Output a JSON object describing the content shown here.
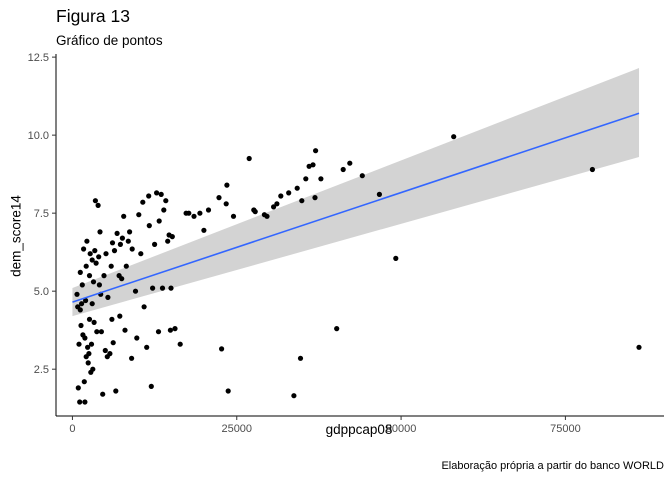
{
  "header": {
    "title": "Figura 13",
    "subtitle": "Gráfico de pontos"
  },
  "caption": "Elaboração própria a partir do banco WORLD",
  "colors": {
    "points": "#000000",
    "fit_line": "#3366ff",
    "ci_band": "#d3d3d3",
    "axis": "#000000"
  },
  "chart_data": {
    "type": "scatter",
    "title": "Figura 13",
    "subtitle": "Gráfico de pontos",
    "xlabel": "gdppcap08",
    "ylabel": "dem_score14",
    "xlim": [
      -2500,
      90000
    ],
    "ylim": [
      1.0,
      12.6
    ],
    "x_ticks": [
      0,
      25000,
      50000,
      75000
    ],
    "x_tick_labels": [
      "0",
      "25000",
      "50000",
      "75000"
    ],
    "y_ticks": [
      2.5,
      5.0,
      7.5,
      10.0,
      12.5
    ],
    "y_tick_labels": [
      "2.5",
      "5.0",
      "7.5",
      "10.0",
      "12.5"
    ],
    "grid": false,
    "smooth": {
      "method": "lm",
      "x": [
        0,
        86200
      ],
      "y": [
        4.65,
        10.7
      ],
      "ci_lower": [
        4.2,
        9.3
      ],
      "ci_upper": [
        5.1,
        12.15
      ]
    },
    "points": [
      [
        700,
        4.9
      ],
      [
        800,
        4.5
      ],
      [
        900,
        1.9
      ],
      [
        1000,
        3.3
      ],
      [
        1100,
        1.45
      ],
      [
        1200,
        4.4
      ],
      [
        1200,
        5.6
      ],
      [
        1300,
        3.9
      ],
      [
        1400,
        4.6
      ],
      [
        1500,
        5.2
      ],
      [
        1600,
        3.6
      ],
      [
        1700,
        6.35
      ],
      [
        1800,
        2.1
      ],
      [
        1900,
        1.45
      ],
      [
        1900,
        3.5
      ],
      [
        2000,
        4.7
      ],
      [
        2100,
        2.9
      ],
      [
        2100,
        5.8
      ],
      [
        2200,
        6.6
      ],
      [
        2300,
        3.2
      ],
      [
        2400,
        2.7
      ],
      [
        2500,
        3.0
      ],
      [
        2600,
        4.1
      ],
      [
        2600,
        5.5
      ],
      [
        2700,
        6.2
      ],
      [
        2800,
        2.4
      ],
      [
        2900,
        3.3
      ],
      [
        3000,
        4.6
      ],
      [
        3000,
        6.0
      ],
      [
        3100,
        2.5
      ],
      [
        3200,
        5.3
      ],
      [
        3300,
        4.0
      ],
      [
        3400,
        6.3
      ],
      [
        3500,
        7.9
      ],
      [
        3600,
        5.9
      ],
      [
        3700,
        3.7
      ],
      [
        3900,
        7.75
      ],
      [
        4000,
        6.1
      ],
      [
        4100,
        5.2
      ],
      [
        4200,
        6.9
      ],
      [
        4300,
        4.9
      ],
      [
        4400,
        3.7
      ],
      [
        4600,
        1.7
      ],
      [
        4800,
        5.5
      ],
      [
        5000,
        3.1
      ],
      [
        5100,
        6.2
      ],
      [
        5300,
        2.9
      ],
      [
        5400,
        4.8
      ],
      [
        5700,
        3.0
      ],
      [
        5900,
        5.8
      ],
      [
        6000,
        4.1
      ],
      [
        6100,
        6.55
      ],
      [
        6200,
        3.35
      ],
      [
        6400,
        6.3
      ],
      [
        6600,
        1.8
      ],
      [
        6800,
        6.85
      ],
      [
        7100,
        5.5
      ],
      [
        7200,
        4.2
      ],
      [
        7300,
        6.5
      ],
      [
        7500,
        5.4
      ],
      [
        7600,
        6.7
      ],
      [
        7800,
        7.4
      ],
      [
        8000,
        3.75
      ],
      [
        8200,
        5.8
      ],
      [
        8500,
        6.6
      ],
      [
        8700,
        6.9
      ],
      [
        9000,
        2.85
      ],
      [
        9100,
        6.35
      ],
      [
        9600,
        5.0
      ],
      [
        9800,
        3.5
      ],
      [
        10100,
        7.45
      ],
      [
        10400,
        6.2
      ],
      [
        10700,
        7.85
      ],
      [
        10900,
        4.5
      ],
      [
        11300,
        3.2
      ],
      [
        11600,
        8.05
      ],
      [
        11700,
        7.1
      ],
      [
        12000,
        1.95
      ],
      [
        12200,
        5.1
      ],
      [
        12500,
        6.5
      ],
      [
        12800,
        8.15
      ],
      [
        13100,
        3.7
      ],
      [
        13200,
        7.25
      ],
      [
        13500,
        8.1
      ],
      [
        13700,
        5.1
      ],
      [
        13900,
        7.6
      ],
      [
        14200,
        7.9
      ],
      [
        14500,
        6.6
      ],
      [
        14700,
        6.8
      ],
      [
        14900,
        3.75
      ],
      [
        15000,
        5.1
      ],
      [
        15200,
        6.75
      ],
      [
        15600,
        3.8
      ],
      [
        16400,
        3.3
      ],
      [
        17300,
        7.5
      ],
      [
        17700,
        7.5
      ],
      [
        18500,
        7.4
      ],
      [
        19400,
        7.5
      ],
      [
        20000,
        6.95
      ],
      [
        20700,
        7.6
      ],
      [
        22300,
        8.0
      ],
      [
        22700,
        3.15
      ],
      [
        23400,
        7.8
      ],
      [
        23500,
        8.4
      ],
      [
        23700,
        1.8
      ],
      [
        24500,
        7.4
      ],
      [
        26900,
        9.25
      ],
      [
        27600,
        7.6
      ],
      [
        27800,
        7.55
      ],
      [
        29200,
        7.45
      ],
      [
        29600,
        7.4
      ],
      [
        30600,
        7.7
      ],
      [
        31100,
        7.8
      ],
      [
        31700,
        8.05
      ],
      [
        32900,
        8.15
      ],
      [
        33700,
        1.65
      ],
      [
        34200,
        8.3
      ],
      [
        34700,
        2.85
      ],
      [
        34900,
        7.9
      ],
      [
        35500,
        8.6
      ],
      [
        36000,
        9.0
      ],
      [
        36600,
        9.05
      ],
      [
        37000,
        9.5
      ],
      [
        36900,
        8.0
      ],
      [
        37800,
        8.6
      ],
      [
        40200,
        3.8
      ],
      [
        41200,
        8.9
      ],
      [
        42200,
        9.1
      ],
      [
        44100,
        8.7
      ],
      [
        46700,
        8.1
      ],
      [
        49200,
        6.05
      ],
      [
        58000,
        9.95
      ],
      [
        79100,
        8.9
      ],
      [
        86200,
        3.2
      ]
    ]
  }
}
